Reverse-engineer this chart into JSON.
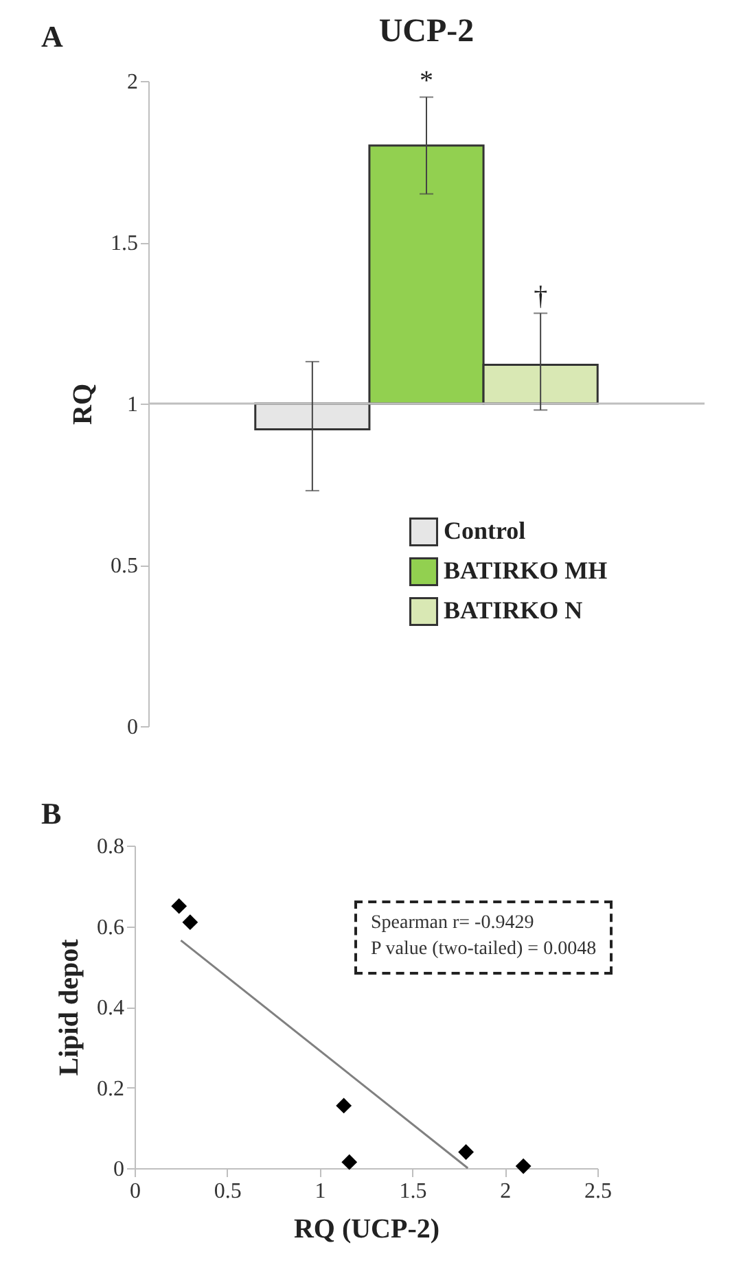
{
  "chart_data": [
    {
      "type": "bar",
      "title": "UCP-2",
      "ylabel": "RQ",
      "annotations": [
        "A",
        "*",
        "†"
      ],
      "categories": [
        null
      ],
      "series": [
        {
          "name": "Control",
          "color": "#e6e6e6",
          "values": [
            -0.08
          ],
          "base": [
            1
          ],
          "errors": [
            [
              0.73,
              1.13
            ]
          ]
        },
        {
          "name": "BATIRKO MH",
          "color": "#92d050",
          "values": [
            0.8
          ],
          "base": [
            1
          ],
          "errors": [
            [
              1.65,
              1.95
            ]
          ]
        },
        {
          "name": "BATIRKO N",
          "color": "#d9e8b4",
          "values": [
            0.12
          ],
          "base": [
            1
          ],
          "errors": [
            [
              0.98,
              1.28
            ]
          ]
        }
      ],
      "ylim": [
        0,
        2
      ],
      "yticks": [
        0,
        0.5,
        1,
        1.5,
        2
      ],
      "ref_lines": [
        {
          "axis": "y",
          "value": 1,
          "color": "#bfbfbf"
        }
      ],
      "legend": "bottom right",
      "tick_labels": "y"
    },
    {
      "type": "scatter",
      "xlabel": "RQ (UCP-2)",
      "ylabel": "Lipid depot",
      "annotations": [
        "B",
        "Spearman r= -0.9429",
        "P value (two-tailed) = 0.0048"
      ],
      "x": [
        0.24,
        0.3,
        1.13,
        1.16,
        1.79,
        2.1
      ],
      "series": [
        {
          "color": "#000000",
          "marker": "diamond",
          "values": [
            0.65,
            0.61,
            0.155,
            0.015,
            0.04,
            0.005
          ]
        },
        {
          "type": "line",
          "color": "#808080",
          "x": [
            0.25,
            1.8
          ],
          "values": [
            0.565,
            0
          ]
        }
      ],
      "xlim": [
        0,
        2.5
      ],
      "xticks": [
        0,
        0.5,
        1,
        1.5,
        2,
        2.5
      ],
      "ylim": [
        0,
        0.8
      ],
      "yticks": [
        0,
        0.2,
        0.4,
        0.6,
        0.8
      ]
    }
  ]
}
